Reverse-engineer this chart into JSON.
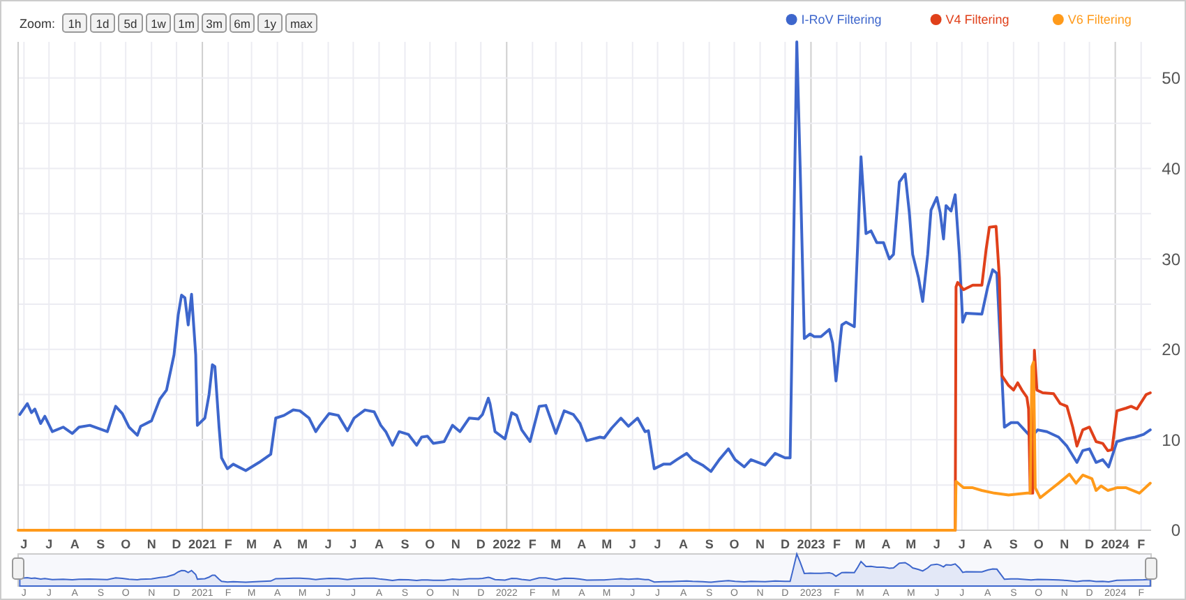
{
  "chart_data": {
    "type": "line",
    "annotations": [
      "Zoom:",
      "1h",
      "1d",
      "5d",
      "1w",
      "1m",
      "3m",
      "6m",
      "1y",
      "max"
    ],
    "xlim": [
      "2020-05-25",
      "2024-02-13"
    ],
    "xticks": [
      {
        "value": "2020-06",
        "label": "J"
      },
      {
        "value": "2020-07",
        "label": "J"
      },
      {
        "value": "2020-08",
        "label": "A"
      },
      {
        "value": "2020-09",
        "label": "S"
      },
      {
        "value": "2020-10",
        "label": "O"
      },
      {
        "value": "2020-11",
        "label": "N"
      },
      {
        "value": "2020-12",
        "label": "D"
      },
      {
        "value": "2021-01",
        "label": "2021"
      },
      {
        "value": "2021-02",
        "label": "F"
      },
      {
        "value": "2021-03",
        "label": "M"
      },
      {
        "value": "2021-04",
        "label": "A"
      },
      {
        "value": "2021-05",
        "label": "M"
      },
      {
        "value": "2021-06",
        "label": "J"
      },
      {
        "value": "2021-07",
        "label": "J"
      },
      {
        "value": "2021-08",
        "label": "A"
      },
      {
        "value": "2021-09",
        "label": "S"
      },
      {
        "value": "2021-10",
        "label": "O"
      },
      {
        "value": "2021-11",
        "label": "N"
      },
      {
        "value": "2021-12",
        "label": "D"
      },
      {
        "value": "2022-01",
        "label": "2022"
      },
      {
        "value": "2022-02",
        "label": "F"
      },
      {
        "value": "2022-03",
        "label": "M"
      },
      {
        "value": "2022-04",
        "label": "A"
      },
      {
        "value": "2022-05",
        "label": "M"
      },
      {
        "value": "2022-06",
        "label": "J"
      },
      {
        "value": "2022-07",
        "label": "J"
      },
      {
        "value": "2022-08",
        "label": "A"
      },
      {
        "value": "2022-09",
        "label": "S"
      },
      {
        "value": "2022-10",
        "label": "O"
      },
      {
        "value": "2022-11",
        "label": "N"
      },
      {
        "value": "2022-12",
        "label": "D"
      },
      {
        "value": "2023-01",
        "label": "2023"
      },
      {
        "value": "2023-02",
        "label": "F"
      },
      {
        "value": "2023-03",
        "label": "M"
      },
      {
        "value": "2023-04",
        "label": "A"
      },
      {
        "value": "2023-05",
        "label": "M"
      },
      {
        "value": "2023-06",
        "label": "J"
      },
      {
        "value": "2023-07",
        "label": "J"
      },
      {
        "value": "2023-08",
        "label": "A"
      },
      {
        "value": "2023-09",
        "label": "S"
      },
      {
        "value": "2023-10",
        "label": "O"
      },
      {
        "value": "2023-11",
        "label": "N"
      },
      {
        "value": "2023-12",
        "label": "D"
      },
      {
        "value": "2024-01",
        "label": "2024"
      },
      {
        "value": "2024-02",
        "label": "F"
      }
    ],
    "ylim": [
      0,
      54
    ],
    "yticks": [
      0,
      {
        "value": 5,
        "label": null
      },
      10,
      {
        "value": 15,
        "label": null
      },
      20,
      {
        "value": 25,
        "label": null
      },
      30,
      {
        "value": 35,
        "label": null
      },
      40,
      {
        "value": 45,
        "label": null
      },
      50
    ],
    "grid": true,
    "legend": "top right",
    "series": [
      {
        "name": "I-RoV Filtering",
        "color": "#3d66cc",
        "x": [
          "2020-05-27",
          "2020-06-05",
          "2020-06-10",
          "2020-06-14",
          "2020-06-21",
          "2020-06-26",
          "2020-07-05",
          "2020-07-18",
          "2020-07-29",
          "2020-08-06",
          "2020-08-19",
          "2020-09-09",
          "2020-09-19",
          "2020-09-27",
          "2020-10-05",
          "2020-10-15",
          "2020-10-19",
          "2020-11-01",
          "2020-11-11",
          "2020-11-19",
          "2020-11-28",
          "2020-12-03",
          "2020-12-07",
          "2020-12-11",
          "2020-12-15",
          "2020-12-19",
          "2020-12-24",
          "2020-12-26",
          "2021-01-04",
          "2021-01-09",
          "2021-01-13",
          "2021-01-16",
          "2021-01-21",
          "2021-01-24",
          "2021-01-31",
          "2021-02-07",
          "2021-02-22",
          "2021-03-10",
          "2021-03-24",
          "2021-03-30",
          "2021-04-09",
          "2021-04-20",
          "2021-04-28",
          "2021-05-09",
          "2021-05-17",
          "2021-05-22",
          "2021-06-02",
          "2021-06-13",
          "2021-06-24",
          "2021-07-02",
          "2021-07-15",
          "2021-07-26",
          "2021-08-03",
          "2021-08-09",
          "2021-08-17",
          "2021-08-25",
          "2021-09-05",
          "2021-09-15",
          "2021-09-21",
          "2021-09-28",
          "2021-10-05",
          "2021-10-18",
          "2021-10-28",
          "2021-11-06",
          "2021-11-17",
          "2021-11-28",
          "2021-12-03",
          "2021-12-10",
          "2021-12-12",
          "2021-12-18",
          "2021-12-30",
          "2022-01-07",
          "2022-01-13",
          "2022-01-19",
          "2022-01-29",
          "2022-02-09",
          "2022-02-17",
          "2022-03-01",
          "2022-03-11",
          "2022-03-22",
          "2022-03-30",
          "2022-04-07",
          "2022-04-23",
          "2022-04-28",
          "2022-05-07",
          "2022-05-18",
          "2022-05-27",
          "2022-06-07",
          "2022-06-16",
          "2022-06-20",
          "2022-06-27",
          "2022-07-08",
          "2022-07-16",
          "2022-07-24",
          "2022-08-05",
          "2022-08-12",
          "2022-08-24",
          "2022-09-03",
          "2022-09-13",
          "2022-09-24",
          "2022-10-02",
          "2022-10-13",
          "2022-10-21",
          "2022-11-07",
          "2022-11-19",
          "2022-12-01",
          "2022-12-07",
          "2022-12-10",
          "2022-12-15",
          "2022-12-19",
          "2022-12-24",
          "2022-12-31",
          "2023-01-05",
          "2023-01-13",
          "2023-01-23",
          "2023-01-27",
          "2023-01-31",
          "2023-02-07",
          "2023-02-12",
          "2023-02-22",
          "2023-02-26",
          "2023-03-02",
          "2023-03-08",
          "2023-03-14",
          "2023-03-21",
          "2023-03-29",
          "2023-04-05",
          "2023-04-10",
          "2023-04-17",
          "2023-04-24",
          "2023-04-29",
          "2023-05-03",
          "2023-05-10",
          "2023-05-15",
          "2023-05-21",
          "2023-05-25",
          "2023-06-01",
          "2023-06-05",
          "2023-06-09",
          "2023-06-12",
          "2023-06-18",
          "2023-06-23",
          "2023-06-28",
          "2023-07-02",
          "2023-07-06",
          "2023-07-25",
          "2023-08-01",
          "2023-08-07",
          "2023-08-12",
          "2023-08-18",
          "2023-08-21",
          "2023-08-29",
          "2023-09-06",
          "2023-09-14",
          "2023-09-22",
          "2023-09-30",
          "2023-10-11",
          "2023-10-25",
          "2023-11-04",
          "2023-11-16",
          "2023-11-23",
          "2023-12-01",
          "2023-12-09",
          "2023-12-17",
          "2023-12-24",
          "2024-01-03",
          "2024-01-14",
          "2024-01-25",
          "2024-02-04",
          "2024-02-12"
        ],
        "values": [
          12.8,
          14.0,
          13.0,
          13.4,
          11.8,
          12.6,
          10.9,
          11.4,
          10.7,
          11.4,
          11.6,
          10.9,
          13.7,
          12.9,
          11.4,
          10.5,
          11.5,
          12.1,
          14.5,
          15.5,
          19.4,
          23.8,
          26.0,
          25.7,
          22.7,
          26.1,
          19.4,
          11.6,
          12.4,
          15.0,
          18.3,
          18.1,
          11.4,
          8.0,
          6.8,
          7.3,
          6.6,
          7.5,
          8.4,
          12.4,
          12.7,
          13.3,
          13.2,
          12.4,
          10.9,
          11.6,
          12.9,
          12.7,
          11.0,
          12.4,
          13.3,
          13.1,
          11.6,
          10.9,
          9.4,
          10.9,
          10.6,
          9.4,
          10.3,
          10.4,
          9.6,
          9.8,
          11.6,
          10.9,
          12.4,
          12.3,
          12.8,
          14.6,
          14.0,
          10.9,
          10.1,
          13.0,
          12.7,
          11.1,
          9.8,
          13.7,
          13.8,
          10.7,
          13.2,
          12.8,
          11.8,
          9.9,
          10.3,
          10.2,
          11.3,
          12.4,
          11.5,
          12.4,
          10.9,
          11.0,
          6.8,
          7.3,
          7.3,
          7.8,
          8.5,
          7.8,
          7.2,
          6.5,
          7.8,
          9.0,
          7.8,
          7.0,
          7.8,
          7.2,
          8.5,
          8.0,
          8.0,
          24.8,
          54,
          40.3,
          21.2,
          21.7,
          21.4,
          21.4,
          22.2,
          20.7,
          16.5,
          22.7,
          23.0,
          22.5,
          31.5,
          41.3,
          32.8,
          33.1,
          31.8,
          31.8,
          30.0,
          30.5,
          38.5,
          39.4,
          35.1,
          30.5,
          27.9,
          25.3,
          30.5,
          35.4,
          36.8,
          35.1,
          32.2,
          35.9,
          35.3,
          37.1,
          30.5,
          23.0,
          24.0,
          23.9,
          26.9,
          28.8,
          28.4,
          17.1,
          11.4,
          11.9,
          11.9,
          11.1,
          10.3,
          11.1,
          10.9,
          10.3,
          9.3,
          7.5,
          8.8,
          9.0,
          7.5,
          7.8,
          7.0,
          9.8,
          10.1,
          10.3,
          10.6,
          11.1
        ]
      },
      {
        "name": "V4 Filtering",
        "color": "#e0401a",
        "x": [
          "2023-06-23",
          "2023-06-24",
          "2023-06-26",
          "2023-07-03",
          "2023-07-14",
          "2023-07-25",
          "2023-07-30",
          "2023-08-03",
          "2023-08-11",
          "2023-08-15",
          "2023-08-18",
          "2023-08-26",
          "2023-09-01",
          "2023-09-06",
          "2023-09-11",
          "2023-09-17",
          "2023-09-19",
          "2023-09-21",
          "2023-09-24",
          "2023-09-26",
          "2023-09-29",
          "2023-10-06",
          "2023-10-19",
          "2023-10-27",
          "2023-11-04",
          "2023-11-11",
          "2023-11-16",
          "2023-11-23",
          "2023-12-01",
          "2023-12-09",
          "2023-12-17",
          "2023-12-23",
          "2023-12-28",
          "2024-01-03",
          "2024-01-14",
          "2024-01-20",
          "2024-01-27",
          "2024-02-07",
          "2024-02-12"
        ],
        "values": [
          0,
          26.9,
          27.4,
          26.6,
          27.1,
          27.1,
          31.0,
          33.5,
          33.6,
          27.9,
          17.1,
          16.0,
          15.5,
          16.3,
          15.5,
          14.7,
          13.4,
          4.1,
          4.1,
          19.9,
          15.5,
          15.2,
          15.1,
          14.0,
          13.7,
          11.4,
          9.3,
          11.1,
          11.4,
          9.8,
          9.6,
          8.8,
          8.9,
          13.2,
          13.5,
          13.7,
          13.4,
          15.0,
          15.2
        ]
      },
      {
        "name": "V6 Filtering",
        "color": "#ff9a1a",
        "x": [
          "2020-05-25",
          "2023-06-23",
          "2023-06-24",
          "2023-07-03",
          "2023-07-14",
          "2023-07-25",
          "2023-08-09",
          "2023-08-26",
          "2023-09-17",
          "2023-09-21",
          "2023-09-23",
          "2023-09-25",
          "2023-09-27",
          "2023-10-03",
          "2023-10-14",
          "2023-10-25",
          "2023-11-07",
          "2023-11-15",
          "2023-11-23",
          "2023-12-04",
          "2023-12-09",
          "2023-12-15",
          "2023-12-23",
          "2024-01-03",
          "2024-01-14",
          "2024-01-30",
          "2024-02-12"
        ],
        "values": [
          0,
          0,
          5.4,
          4.7,
          4.7,
          4.4,
          4.1,
          3.9,
          4.1,
          4.1,
          18.1,
          18.6,
          4.7,
          3.6,
          4.4,
          5.2,
          6.2,
          5.2,
          6.1,
          5.7,
          4.4,
          4.9,
          4.4,
          4.7,
          4.7,
          4.1,
          5.2
        ]
      }
    ]
  }
}
